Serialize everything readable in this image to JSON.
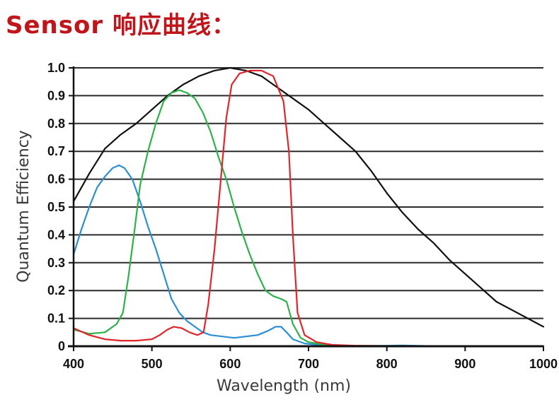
{
  "header": {
    "title": "Sensor 响应曲线："
  },
  "chart_data": {
    "type": "line",
    "title": "",
    "xlabel": "Wavelength (nm)",
    "ylabel": "Quantum Efficiency",
    "xlim": [
      400,
      1000
    ],
    "ylim": [
      0,
      1.0
    ],
    "xticks": [
      400,
      500,
      600,
      700,
      800,
      900,
      1000
    ],
    "xtick_labels": [
      "400",
      "500",
      "600",
      "700",
      "800",
      "900",
      "1000"
    ],
    "yticks": [
      0,
      0.1,
      0.2,
      0.3,
      0.4,
      0.5,
      0.6,
      0.7,
      0.8,
      0.9,
      1.0
    ],
    "ytick_labels": [
      "0",
      "0.1",
      "0.2",
      "0.3",
      "0.4",
      "0.5",
      "0.6",
      "0.7",
      "0.8",
      "0.9",
      "1.0"
    ],
    "grid": true,
    "series": [
      {
        "color": "#111111",
        "points": [
          [
            400,
            0.52
          ],
          [
            420,
            0.62
          ],
          [
            440,
            0.71
          ],
          [
            460,
            0.76
          ],
          [
            480,
            0.8
          ],
          [
            500,
            0.85
          ],
          [
            520,
            0.9
          ],
          [
            540,
            0.94
          ],
          [
            560,
            0.97
          ],
          [
            580,
            0.99
          ],
          [
            600,
            1.0
          ],
          [
            620,
            0.99
          ],
          [
            640,
            0.97
          ],
          [
            660,
            0.93
          ],
          [
            680,
            0.89
          ],
          [
            700,
            0.85
          ],
          [
            720,
            0.8
          ],
          [
            740,
            0.75
          ],
          [
            760,
            0.7
          ],
          [
            780,
            0.63
          ],
          [
            800,
            0.55
          ],
          [
            820,
            0.48
          ],
          [
            840,
            0.42
          ],
          [
            860,
            0.37
          ],
          [
            880,
            0.31
          ],
          [
            900,
            0.26
          ],
          [
            920,
            0.21
          ],
          [
            940,
            0.16
          ],
          [
            960,
            0.13
          ],
          [
            980,
            0.1
          ],
          [
            1000,
            0.07
          ]
        ]
      },
      {
        "color": "#2a8fd4",
        "points": [
          [
            400,
            0.33
          ],
          [
            410,
            0.42
          ],
          [
            420,
            0.5
          ],
          [
            430,
            0.57
          ],
          [
            440,
            0.61
          ],
          [
            450,
            0.64
          ],
          [
            458,
            0.65
          ],
          [
            465,
            0.64
          ],
          [
            475,
            0.6
          ],
          [
            485,
            0.52
          ],
          [
            495,
            0.43
          ],
          [
            505,
            0.35
          ],
          [
            515,
            0.26
          ],
          [
            525,
            0.17
          ],
          [
            535,
            0.12
          ],
          [
            545,
            0.09
          ],
          [
            555,
            0.07
          ],
          [
            565,
            0.05
          ],
          [
            575,
            0.04
          ],
          [
            590,
            0.035
          ],
          [
            605,
            0.03
          ],
          [
            620,
            0.035
          ],
          [
            635,
            0.04
          ],
          [
            648,
            0.055
          ],
          [
            658,
            0.07
          ],
          [
            665,
            0.07
          ],
          [
            672,
            0.05
          ],
          [
            680,
            0.025
          ],
          [
            695,
            0.01
          ],
          [
            720,
            0.003
          ],
          [
            760,
            0.001
          ],
          [
            800,
            0.002
          ],
          [
            820,
            0.003
          ],
          [
            850,
            0.001
          ],
          [
            900,
            0.001
          ],
          [
            1000,
            0.001
          ]
        ]
      },
      {
        "color": "#2db24a",
        "points": [
          [
            400,
            0.06
          ],
          [
            420,
            0.045
          ],
          [
            440,
            0.05
          ],
          [
            455,
            0.08
          ],
          [
            463,
            0.12
          ],
          [
            470,
            0.25
          ],
          [
            478,
            0.42
          ],
          [
            485,
            0.58
          ],
          [
            495,
            0.7
          ],
          [
            505,
            0.8
          ],
          [
            515,
            0.88
          ],
          [
            525,
            0.91
          ],
          [
            535,
            0.92
          ],
          [
            545,
            0.91
          ],
          [
            555,
            0.89
          ],
          [
            565,
            0.84
          ],
          [
            575,
            0.77
          ],
          [
            585,
            0.68
          ],
          [
            595,
            0.6
          ],
          [
            605,
            0.5
          ],
          [
            615,
            0.41
          ],
          [
            625,
            0.33
          ],
          [
            635,
            0.26
          ],
          [
            645,
            0.2
          ],
          [
            655,
            0.18
          ],
          [
            665,
            0.17
          ],
          [
            672,
            0.16
          ],
          [
            680,
            0.08
          ],
          [
            690,
            0.03
          ],
          [
            700,
            0.015
          ],
          [
            720,
            0.005
          ],
          [
            750,
            0.002
          ],
          [
            800,
            0.001
          ],
          [
            1000,
            0.001
          ]
        ]
      },
      {
        "color": "#e0262b",
        "points": [
          [
            400,
            0.065
          ],
          [
            420,
            0.04
          ],
          [
            440,
            0.025
          ],
          [
            460,
            0.02
          ],
          [
            480,
            0.02
          ],
          [
            500,
            0.025
          ],
          [
            510,
            0.04
          ],
          [
            520,
            0.06
          ],
          [
            528,
            0.07
          ],
          [
            538,
            0.065
          ],
          [
            548,
            0.05
          ],
          [
            558,
            0.04
          ],
          [
            566,
            0.05
          ],
          [
            572,
            0.15
          ],
          [
            580,
            0.35
          ],
          [
            588,
            0.6
          ],
          [
            595,
            0.82
          ],
          [
            602,
            0.94
          ],
          [
            612,
            0.98
          ],
          [
            625,
            0.99
          ],
          [
            640,
            0.99
          ],
          [
            655,
            0.97
          ],
          [
            668,
            0.88
          ],
          [
            675,
            0.7
          ],
          [
            680,
            0.4
          ],
          [
            686,
            0.12
          ],
          [
            695,
            0.04
          ],
          [
            710,
            0.015
          ],
          [
            730,
            0.005
          ],
          [
            760,
            0.002
          ],
          [
            800,
            0.001
          ],
          [
            1000,
            0.001
          ]
        ]
      }
    ]
  }
}
